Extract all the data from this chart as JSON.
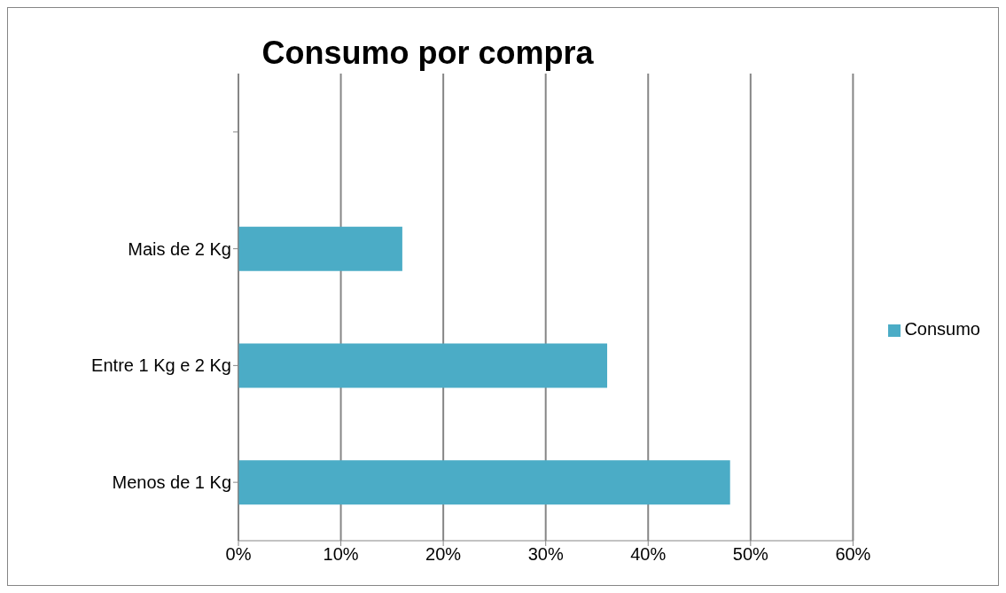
{
  "chart_data": {
    "type": "bar",
    "orientation": "horizontal",
    "title": "Consumo por compra",
    "categories": [
      null,
      "Mais de 2 Kg",
      "Entre 1 Kg e 2 Kg",
      "Menos de 1 Kg"
    ],
    "series": [
      {
        "name": "Consumo",
        "color": "#4bacc6",
        "values": [
          null,
          16,
          36,
          48
        ]
      }
    ],
    "xlim": [
      0,
      60
    ],
    "xticks": [
      {
        "value": 0,
        "label": "0%"
      },
      {
        "value": 10,
        "label": "10%"
      },
      {
        "value": 20,
        "label": "20%"
      },
      {
        "value": 30,
        "label": "30%"
      },
      {
        "value": 40,
        "label": "40%"
      },
      {
        "value": 50,
        "label": "50%"
      },
      {
        "value": 60,
        "label": "60%"
      }
    ],
    "grid": "x",
    "legend": "right"
  }
}
